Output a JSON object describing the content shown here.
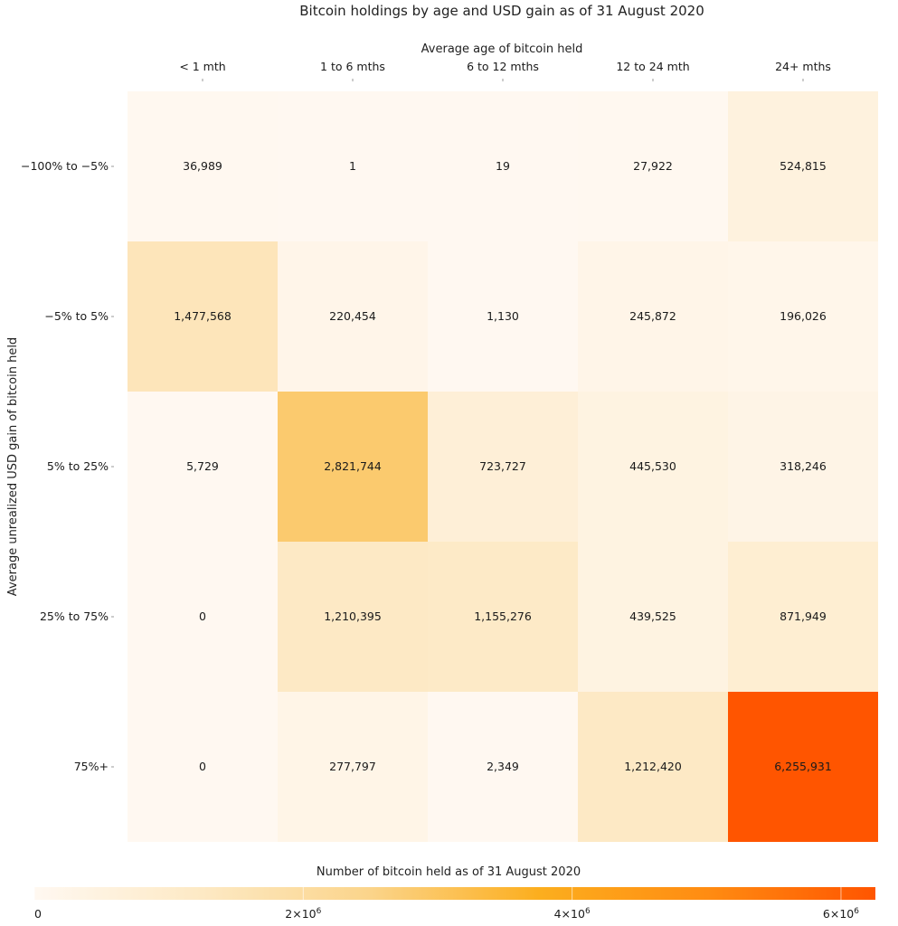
{
  "chart_data": {
    "type": "heatmap",
    "title": "Bitcoin holdings by age and USD gain as of 31 August 2020",
    "xlabel": "Average age of bitcoin held",
    "ylabel": "Average unrealized USD gain of bitcoin held",
    "x_categories": [
      "< 1 mth",
      "1 to 6 mths",
      "6 to 12 mths",
      "12 to 24 mth",
      "24+ mths"
    ],
    "y_categories": [
      "−100% to −5%",
      "−5% to 5%",
      "5% to 25%",
      "25% to 75%",
      "75%+"
    ],
    "values": [
      [
        36989,
        1,
        19,
        27922,
        524815
      ],
      [
        1477568,
        220454,
        1130,
        245872,
        196026
      ],
      [
        5729,
        2821744,
        723727,
        445530,
        318246
      ],
      [
        0,
        1210395,
        1155276,
        439525,
        871949
      ],
      [
        0,
        277797,
        2349,
        1212420,
        6255931
      ]
    ],
    "value_labels": [
      [
        "36,989",
        "1",
        "19",
        "27,922",
        "524,815"
      ],
      [
        "1,477,568",
        "220,454",
        "1,130",
        "245,872",
        "196,026"
      ],
      [
        "5,729",
        "2,821,744",
        "723,727",
        "445,530",
        "318,246"
      ],
      [
        "0",
        "1,210,395",
        "1,155,276",
        "439,525",
        "871,949"
      ],
      [
        "0",
        "277,797",
        "2,349",
        "1,212,420",
        "6,255,931"
      ]
    ],
    "colorbar": {
      "title": "Number of bitcoin held as of 31 August 2020",
      "range": [
        0,
        6255931
      ],
      "ticks": [
        {
          "value": 0,
          "base": "0",
          "exp": ""
        },
        {
          "value": 2000000,
          "base": "2×10",
          "exp": "6"
        },
        {
          "value": 4000000,
          "base": "4×10",
          "exp": "6"
        },
        {
          "value": 6000000,
          "base": "6×10",
          "exp": "6"
        }
      ],
      "colors": [
        "#fff8f1",
        "#fde9c4",
        "#fbd48a",
        "#fcae1e",
        "#ff8c12",
        "#ff5500"
      ]
    }
  }
}
